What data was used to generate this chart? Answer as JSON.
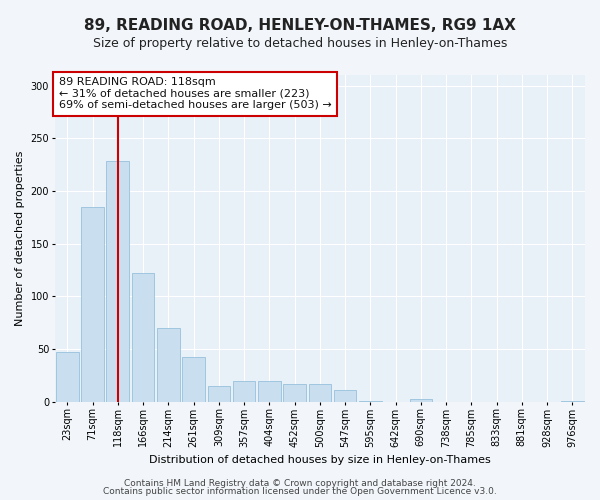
{
  "title": "89, READING ROAD, HENLEY-ON-THAMES, RG9 1AX",
  "subtitle": "Size of property relative to detached houses in Henley-on-Thames",
  "xlabel": "Distribution of detached houses by size in Henley-on-Thames",
  "ylabel": "Number of detached properties",
  "footer1": "Contains HM Land Registry data © Crown copyright and database right 2024.",
  "footer2": "Contains public sector information licensed under the Open Government Licence v3.0.",
  "annotation_line1": "89 READING ROAD: 118sqm",
  "annotation_line2": "← 31% of detached houses are smaller (223)",
  "annotation_line3": "69% of semi-detached houses are larger (503) →",
  "bar_color": "#c9dff0",
  "bar_edge_color": "#8ab8d8",
  "marker_color": "#cc0000",
  "categories": [
    "23sqm",
    "71sqm",
    "118sqm",
    "166sqm",
    "214sqm",
    "261sqm",
    "309sqm",
    "357sqm",
    "404sqm",
    "452sqm",
    "500sqm",
    "547sqm",
    "595sqm",
    "642sqm",
    "690sqm",
    "738sqm",
    "785sqm",
    "833sqm",
    "881sqm",
    "928sqm",
    "976sqm"
  ],
  "values": [
    47,
    185,
    228,
    122,
    70,
    42,
    15,
    20,
    20,
    17,
    17,
    11,
    1,
    0,
    3,
    0,
    0,
    0,
    0,
    0,
    1
  ],
  "ylim": [
    0,
    310
  ],
  "yticks": [
    0,
    50,
    100,
    150,
    200,
    250,
    300
  ],
  "bg_color": "#f2f6fa",
  "plot_bg_color": "#e8f0f8",
  "title_fontsize": 11,
  "subtitle_fontsize": 9,
  "ylabel_fontsize": 8,
  "xlabel_fontsize": 8,
  "tick_fontsize": 7,
  "footer_fontsize": 6.5,
  "annot_fontsize": 8
}
